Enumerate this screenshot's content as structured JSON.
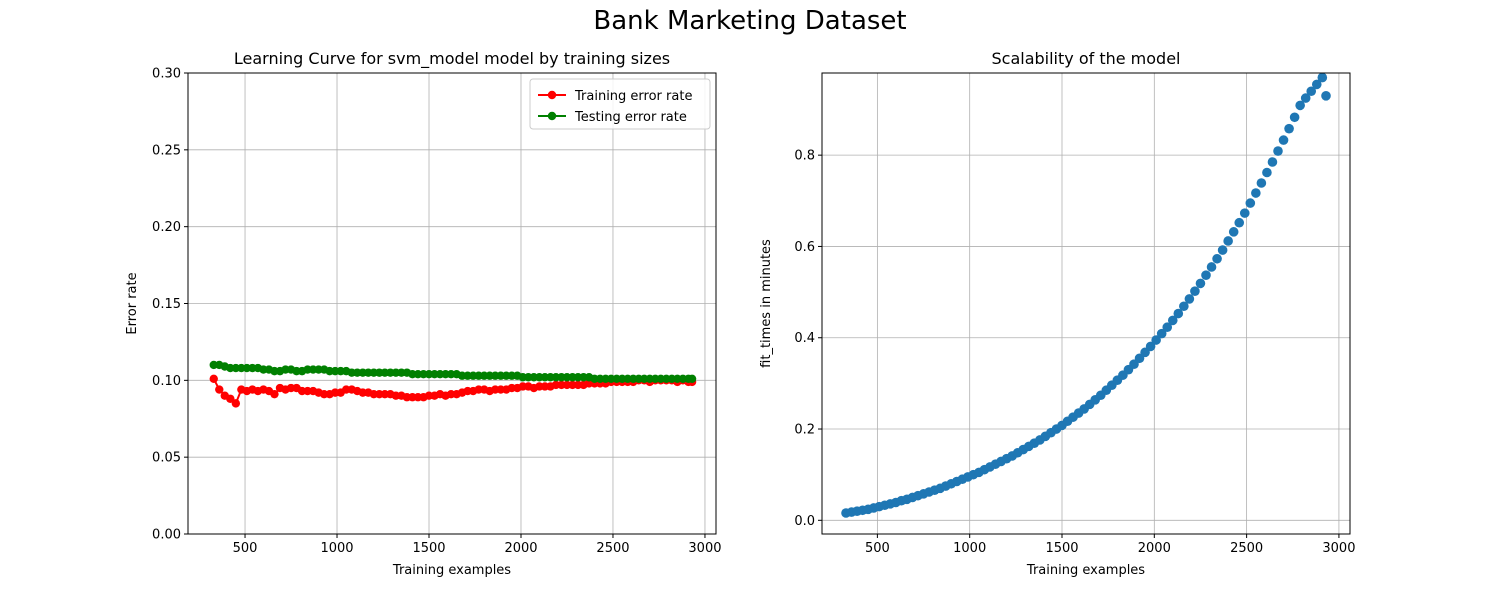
{
  "figure": {
    "title": "Bank Marketing Dataset"
  },
  "chart_data": [
    {
      "type": "line",
      "title": "Learning Curve for svm_model model by training sizes",
      "xlabel": "Training examples",
      "ylabel": "Error rate",
      "xlim": [
        190,
        3060
      ],
      "ylim": [
        0.0,
        0.3
      ],
      "xticks": [
        500,
        1000,
        1500,
        2000,
        2500,
        3000
      ],
      "yticks": [
        0.0,
        0.05,
        0.1,
        0.15,
        0.2,
        0.25,
        0.3
      ],
      "ytick_format": 2,
      "grid": true,
      "legend": "upper right",
      "x": [
        330,
        360,
        390,
        420,
        450,
        480,
        510,
        540,
        570,
        600,
        630,
        660,
        690,
        720,
        750,
        780,
        810,
        840,
        870,
        900,
        930,
        960,
        990,
        1020,
        1050,
        1080,
        1110,
        1140,
        1170,
        1200,
        1230,
        1260,
        1290,
        1320,
        1350,
        1380,
        1410,
        1440,
        1470,
        1500,
        1530,
        1560,
        1590,
        1620,
        1650,
        1680,
        1710,
        1740,
        1770,
        1800,
        1830,
        1860,
        1890,
        1920,
        1950,
        1980,
        2010,
        2040,
        2070,
        2100,
        2130,
        2160,
        2190,
        2220,
        2250,
        2280,
        2310,
        2340,
        2370,
        2400,
        2430,
        2460,
        2490,
        2520,
        2550,
        2580,
        2610,
        2640,
        2670,
        2700,
        2730,
        2760,
        2790,
        2820,
        2850,
        2880,
        2910,
        2930
      ],
      "series": [
        {
          "name": "Training error rate",
          "color": "#ff0000",
          "values": [
            0.101,
            0.094,
            0.09,
            0.088,
            0.085,
            0.094,
            0.093,
            0.094,
            0.093,
            0.094,
            0.093,
            0.091,
            0.095,
            0.094,
            0.095,
            0.095,
            0.093,
            0.093,
            0.093,
            0.092,
            0.091,
            0.091,
            0.092,
            0.092,
            0.094,
            0.094,
            0.093,
            0.092,
            0.092,
            0.091,
            0.091,
            0.091,
            0.091,
            0.09,
            0.09,
            0.089,
            0.089,
            0.089,
            0.089,
            0.09,
            0.09,
            0.091,
            0.09,
            0.091,
            0.091,
            0.092,
            0.093,
            0.093,
            0.094,
            0.094,
            0.093,
            0.094,
            0.094,
            0.094,
            0.095,
            0.095,
            0.096,
            0.096,
            0.095,
            0.096,
            0.096,
            0.096,
            0.097,
            0.097,
            0.097,
            0.097,
            0.097,
            0.097,
            0.098,
            0.098,
            0.098,
            0.098,
            0.099,
            0.099,
            0.099,
            0.099,
            0.099,
            0.1,
            0.1,
            0.099,
            0.1,
            0.1,
            0.1,
            0.1,
            0.099,
            0.1,
            0.099,
            0.099
          ]
        },
        {
          "name": "Testing error rate",
          "color": "#008000",
          "values": [
            0.11,
            0.11,
            0.109,
            0.108,
            0.108,
            0.108,
            0.108,
            0.108,
            0.108,
            0.107,
            0.107,
            0.106,
            0.106,
            0.107,
            0.107,
            0.106,
            0.106,
            0.107,
            0.107,
            0.107,
            0.107,
            0.106,
            0.106,
            0.106,
            0.106,
            0.105,
            0.105,
            0.105,
            0.105,
            0.105,
            0.105,
            0.105,
            0.105,
            0.105,
            0.105,
            0.105,
            0.104,
            0.104,
            0.104,
            0.104,
            0.104,
            0.104,
            0.104,
            0.104,
            0.104,
            0.103,
            0.103,
            0.103,
            0.103,
            0.103,
            0.103,
            0.103,
            0.103,
            0.103,
            0.103,
            0.103,
            0.102,
            0.102,
            0.102,
            0.102,
            0.102,
            0.102,
            0.102,
            0.102,
            0.102,
            0.102,
            0.102,
            0.102,
            0.102,
            0.101,
            0.101,
            0.101,
            0.101,
            0.101,
            0.101,
            0.101,
            0.101,
            0.101,
            0.101,
            0.101,
            0.101,
            0.101,
            0.101,
            0.101,
            0.101,
            0.101,
            0.101,
            0.101
          ]
        }
      ]
    },
    {
      "type": "scatter",
      "title": "Scalability of the model",
      "xlabel": "Training examples",
      "ylabel": "fit_times in minutes",
      "xlim": [
        200,
        3060
      ],
      "ylim": [
        -0.03,
        0.98
      ],
      "xticks": [
        500,
        1000,
        1500,
        2000,
        2500,
        3000
      ],
      "yticks": [
        0.0,
        0.2,
        0.4,
        0.6,
        0.8
      ],
      "ytick_format": 1,
      "grid": true,
      "series": [
        {
          "color": "#1f77b4",
          "x": [
            330,
            360,
            390,
            420,
            450,
            480,
            510,
            540,
            570,
            600,
            630,
            660,
            690,
            720,
            750,
            780,
            810,
            840,
            870,
            900,
            930,
            960,
            990,
            1020,
            1050,
            1080,
            1110,
            1140,
            1170,
            1200,
            1230,
            1260,
            1290,
            1320,
            1350,
            1380,
            1410,
            1440,
            1470,
            1500,
            1530,
            1560,
            1590,
            1620,
            1650,
            1680,
            1710,
            1740,
            1770,
            1800,
            1830,
            1860,
            1890,
            1920,
            1950,
            1980,
            2010,
            2040,
            2070,
            2100,
            2130,
            2160,
            2190,
            2220,
            2250,
            2280,
            2310,
            2340,
            2370,
            2400,
            2430,
            2460,
            2490,
            2520,
            2550,
            2580,
            2610,
            2640,
            2670,
            2700,
            2730,
            2760,
            2790,
            2820,
            2850,
            2880,
            2910,
            2930
          ],
          "values": [
            0.016,
            0.018,
            0.02,
            0.022,
            0.024,
            0.027,
            0.03,
            0.033,
            0.036,
            0.039,
            0.043,
            0.046,
            0.05,
            0.054,
            0.058,
            0.062,
            0.066,
            0.07,
            0.075,
            0.08,
            0.085,
            0.09,
            0.095,
            0.1,
            0.105,
            0.111,
            0.117,
            0.123,
            0.129,
            0.135,
            0.141,
            0.148,
            0.155,
            0.162,
            0.169,
            0.176,
            0.184,
            0.192,
            0.2,
            0.208,
            0.217,
            0.226,
            0.235,
            0.244,
            0.254,
            0.264,
            0.274,
            0.285,
            0.296,
            0.307,
            0.318,
            0.33,
            0.342,
            0.355,
            0.368,
            0.381,
            0.395,
            0.409,
            0.423,
            0.438,
            0.453,
            0.469,
            0.485,
            0.502,
            0.519,
            0.537,
            0.555,
            0.573,
            0.592,
            0.612,
            0.632,
            0.652,
            0.673,
            0.695,
            0.717,
            0.739,
            0.762,
            0.785,
            0.809,
            0.833,
            0.858,
            0.883,
            0.909,
            0.925,
            0.94,
            0.955,
            0.97,
            0.93
          ]
        }
      ]
    }
  ]
}
